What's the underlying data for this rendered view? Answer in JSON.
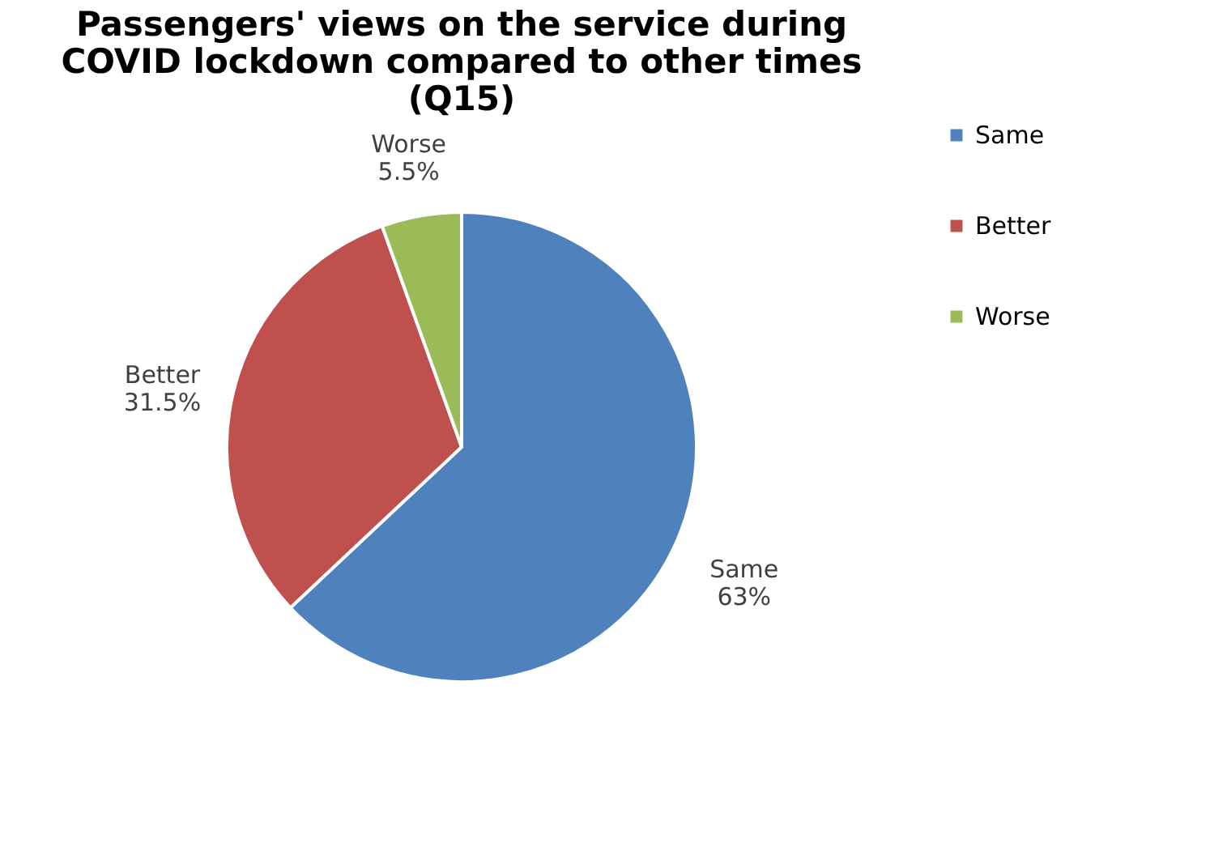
{
  "chart_data": {
    "type": "pie",
    "title": "Passengers' views on the service during\nCOVID lockdown compared to other times\n(Q15)",
    "categories": [
      "Same",
      "Better",
      "Worse"
    ],
    "values": [
      63,
      31.5,
      5.5
    ],
    "colors": [
      "#4f81bd",
      "#c0504d",
      "#9bbb59"
    ],
    "value_labels": [
      "63%",
      "31.5%",
      "5.5%"
    ],
    "legend": "right"
  }
}
